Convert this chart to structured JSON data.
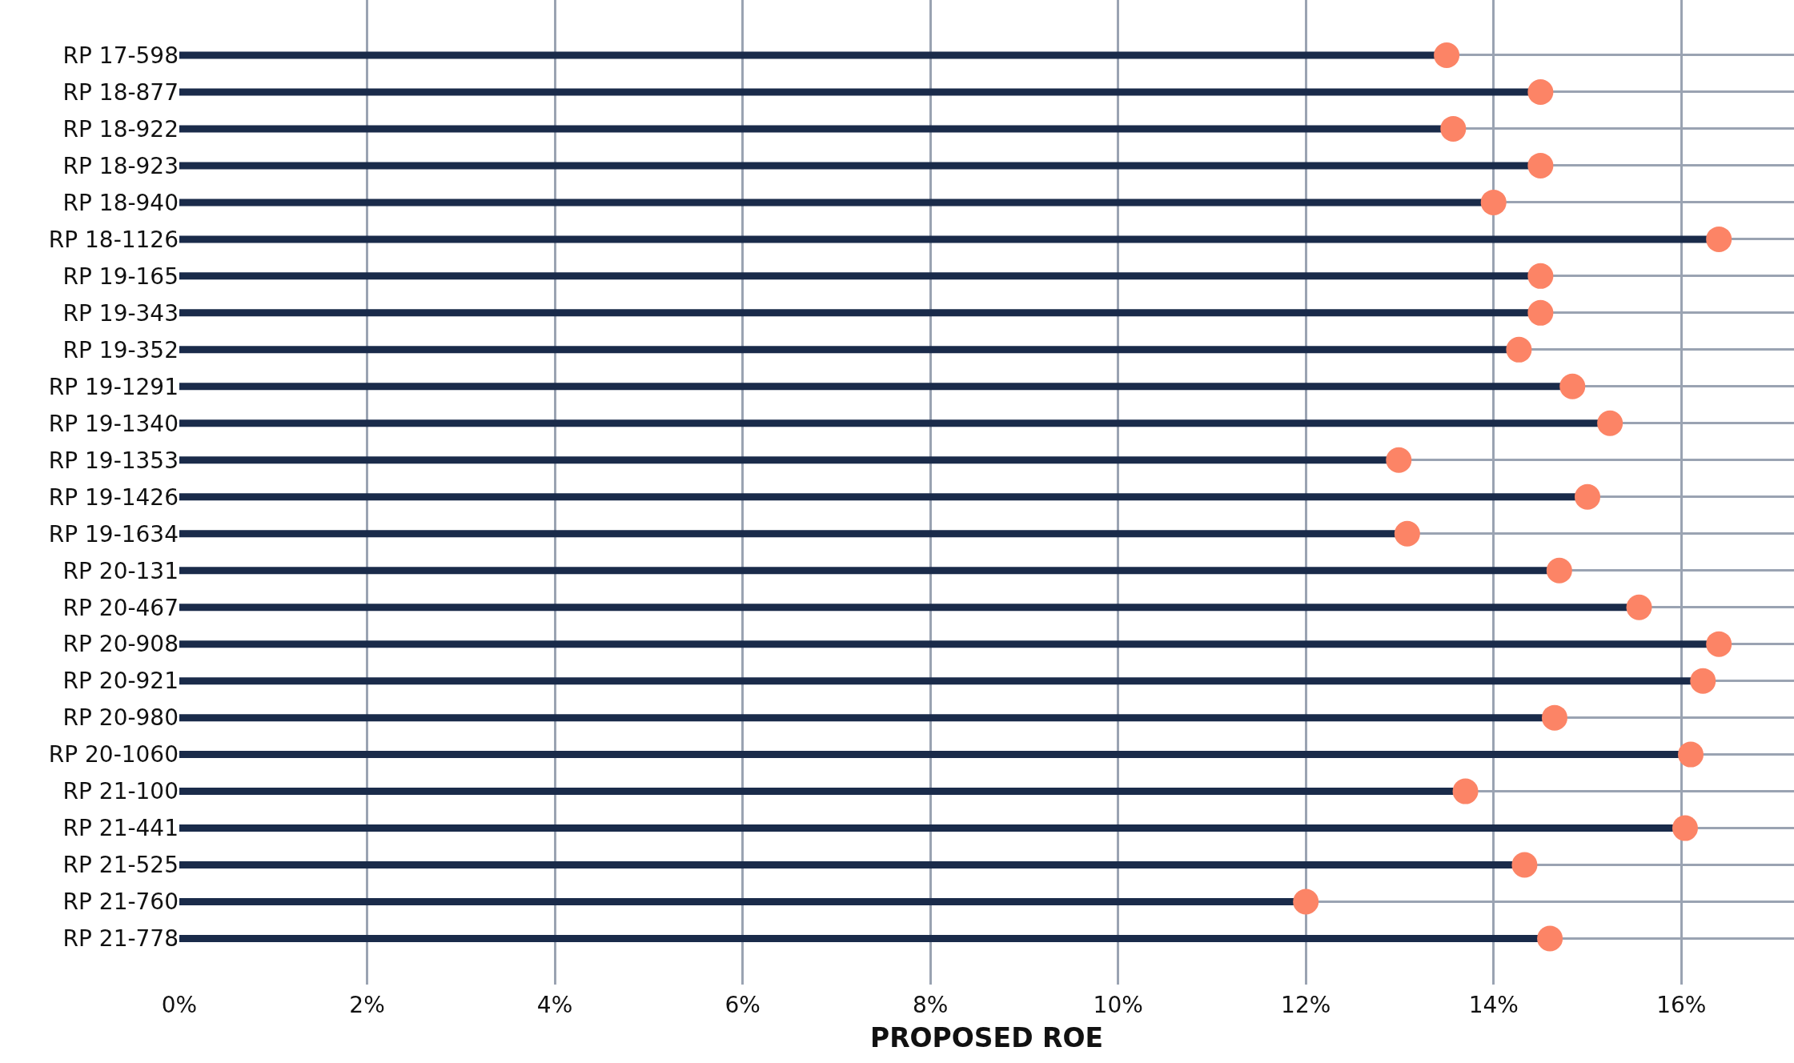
{
  "chart_data": {
    "type": "lollipop",
    "orientation": "horizontal",
    "xlabel": "PROPOSED ROE",
    "categories": [
      "RP 17-598",
      "RP 18-877",
      "RP 18-922",
      "RP 18-923",
      "RP 18-940",
      "RP 18-1126",
      "RP 19-165",
      "RP 19-343",
      "RP 19-352",
      "RP 19-1291",
      "RP 19-1340",
      "RP 19-1353",
      "RP 19-1426",
      "RP 19-1634",
      "RP 20-131",
      "RP 20-467",
      "RP 20-908",
      "RP 20-921",
      "RP 20-980",
      "RP 20-1060",
      "RP 21-100",
      "RP 21-441",
      "RP 21-525",
      "RP 21-760",
      "RP 21-778"
    ],
    "series": [
      {
        "color": "#fc8466",
        "values": [
          13.5,
          14.5,
          13.57,
          14.5,
          14.0,
          16.4,
          14.5,
          14.5,
          14.27,
          14.84,
          15.24,
          12.99,
          15.0,
          13.08,
          14.7,
          15.55,
          16.4,
          16.23,
          14.65,
          16.1,
          13.7,
          16.04,
          14.33,
          12.0,
          14.6
        ]
      }
    ],
    "xlim": [
      0,
      17.2
    ],
    "xticks": [
      {
        "value": 0,
        "label": "0%"
      },
      {
        "value": 2,
        "label": "2%"
      },
      {
        "value": 4,
        "label": "4%"
      },
      {
        "value": 6,
        "label": "6%"
      },
      {
        "value": 8,
        "label": "8%"
      },
      {
        "value": 10,
        "label": "10%"
      },
      {
        "value": 12,
        "label": "12%"
      },
      {
        "value": 14,
        "label": "14%"
      },
      {
        "value": 16,
        "label": "16%"
      }
    ],
    "grid": true,
    "marker": "circle"
  }
}
